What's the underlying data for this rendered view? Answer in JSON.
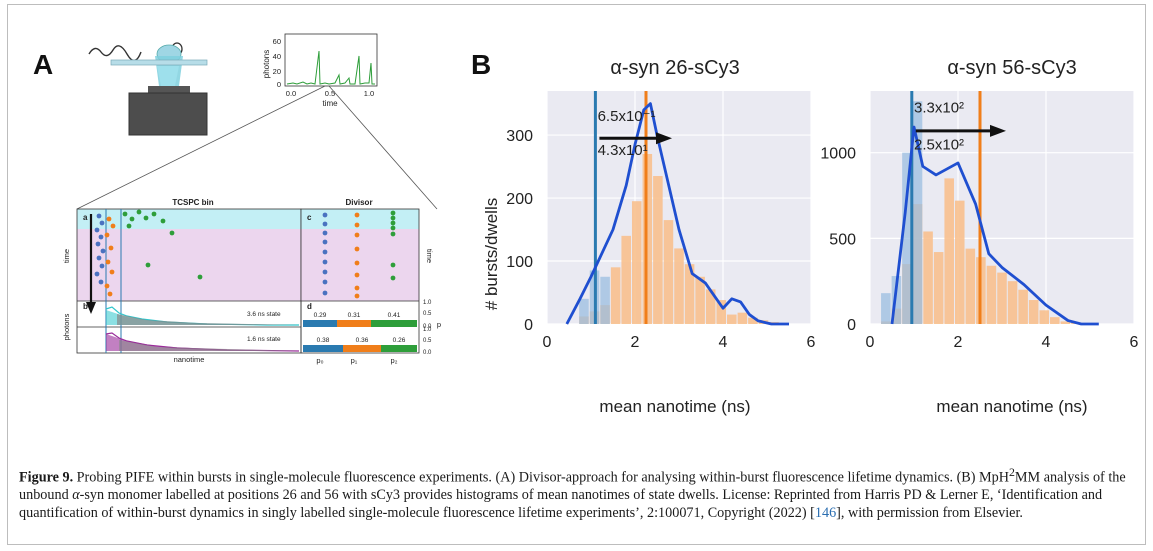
{
  "panel_labels": {
    "a": "A",
    "b": "B"
  },
  "colors": {
    "blue": "#2a7ab0",
    "orange": "#f07e1a",
    "fit_line": "#1f4fd0",
    "bar_blue": "#9bbde0",
    "bar_orange": "#f8c08e",
    "plot_bg": "#eaeaf2",
    "green": "#2e9e3a",
    "cyan": "#bff0f4",
    "violet": "#ead4ec"
  },
  "panel_a": {
    "trace": {
      "ylabel": "photons",
      "xlabel": "time",
      "yticks": [
        "0",
        "20",
        "40",
        "60"
      ],
      "xticks": [
        "0.0",
        "0.5",
        "1.0"
      ]
    },
    "tcspc": {
      "title": "TCSPC bin",
      "sub_a": "a",
      "sub_b": "b",
      "ylabel_time": "time",
      "ylabel_photons": "photons",
      "state1": "3.6 ns state",
      "state2": "1.6 ns state",
      "xlabel": "nanotime"
    },
    "divisor": {
      "title": "Divisor",
      "sub_c": "c",
      "sub_d": "d",
      "ylabel_time": "time",
      "ylabel_p": "p",
      "axis_ticks": [
        "1.0",
        "0.5",
        "0.0",
        "1.0",
        "0.5",
        "0.0"
      ],
      "row1": [
        "0.29",
        "0.31",
        "0.41"
      ],
      "row2": [
        "0.38",
        "0.36",
        "0.26"
      ],
      "xlabels": [
        "p₀",
        "p₁",
        "p₂"
      ]
    }
  },
  "chart_data": [
    {
      "type": "bar",
      "title": "α-syn 26-sCy3",
      "xlabel": "mean nanotime (ns)",
      "ylabel": "# bursts/dwells",
      "xlim": [
        0,
        6
      ],
      "ylim": [
        0,
        370
      ],
      "xticks": [
        "0",
        "2",
        "4",
        "6"
      ],
      "yticks": [
        "0",
        "100",
        "200",
        "300"
      ],
      "grid": true,
      "bin_width": 0.24,
      "blue_bars": {
        "x": [
          0.72,
          0.96,
          1.2
        ],
        "values": [
          40,
          85,
          75
        ]
      },
      "orange_bars": {
        "x": [
          0.72,
          0.96,
          1.2,
          1.44,
          1.68,
          1.92,
          2.16,
          2.4,
          2.64,
          2.88,
          3.12,
          3.36,
          3.6,
          3.84,
          4.08,
          4.32,
          4.56,
          4.8,
          5.04
        ],
        "values": [
          12,
          20,
          30,
          90,
          140,
          195,
          270,
          235,
          165,
          120,
          95,
          75,
          55,
          38,
          15,
          18,
          10,
          6,
          3
        ]
      },
      "fit_line": {
        "x": [
          0.45,
          0.75,
          1.0,
          1.2,
          1.5,
          1.8,
          2.0,
          2.2,
          2.35,
          2.5,
          2.7,
          3.0,
          3.3,
          3.6,
          3.8,
          4.0,
          4.2,
          4.4,
          4.6,
          4.8,
          5.1,
          5.5
        ],
        "y": [
          0,
          40,
          75,
          105,
          150,
          220,
          285,
          340,
          350,
          300,
          240,
          150,
          80,
          65,
          45,
          25,
          40,
          35,
          15,
          5,
          0,
          0
        ]
      },
      "vlines": [
        {
          "x": 1.1,
          "color": "blue"
        },
        {
          "x": 2.25,
          "color": "orange"
        }
      ],
      "annotations": [
        {
          "text": "6.5x10⁻¹",
          "x": 1.15,
          "y": 322
        },
        {
          "text": "4.3x10¹",
          "x": 1.15,
          "y": 268
        }
      ]
    },
    {
      "type": "bar",
      "title": "α-syn 56-sCy3",
      "xlabel": "mean nanotime (ns)",
      "ylabel": "",
      "xlim": [
        0,
        6
      ],
      "ylim": [
        0,
        1360
      ],
      "xticks": [
        "0",
        "2",
        "4",
        "6"
      ],
      "yticks": [
        "0",
        "500",
        "1000"
      ],
      "grid": true,
      "bin_width": 0.24,
      "blue_bars": {
        "x": [
          0.24,
          0.48,
          0.72,
          0.96
        ],
        "values": [
          180,
          280,
          1000,
          1300
        ]
      },
      "orange_bars": {
        "x": [
          0.24,
          0.48,
          0.72,
          0.96,
          1.2,
          1.44,
          1.68,
          1.92,
          2.16,
          2.4,
          2.64,
          2.88,
          3.12,
          3.36,
          3.6,
          3.84,
          4.08,
          4.32,
          4.56
        ],
        "values": [
          15,
          90,
          350,
          700,
          540,
          420,
          850,
          720,
          440,
          390,
          340,
          300,
          250,
          200,
          140,
          80,
          40,
          15,
          8
        ]
      },
      "fit_line": {
        "x": [
          0.5,
          0.8,
          1.0,
          1.2,
          1.5,
          2.0,
          2.4,
          2.7,
          3.0,
          3.5,
          4.0,
          4.5,
          4.8,
          5.2
        ],
        "y": [
          0,
          650,
          1150,
          920,
          870,
          940,
          700,
          410,
          330,
          230,
          110,
          20,
          0,
          0
        ]
      },
      "vlines": [
        {
          "x": 0.95,
          "color": "blue"
        },
        {
          "x": 2.5,
          "color": "orange"
        }
      ],
      "annotations": [
        {
          "text": "3.3x10²",
          "x": 1.0,
          "y": 1235
        },
        {
          "text": "2.5x10²",
          "x": 1.0,
          "y": 1020
        }
      ]
    }
  ],
  "caption": {
    "label": "Figure 9.",
    "text_1": " Probing PIFE within bursts in single-molecule fluorescence experiments. (A) Divisor-approach for analysing within-burst fluorescence lifetime dynamics. (B) MpH",
    "sup": "2",
    "text_2": "MM analysis of the unbound ",
    "alpha": "α",
    "text_3": "-syn monomer labelled at positions 26 and 56 with sCy3 provides histograms of mean nanotimes of state dwells. License: Reprinted from Harris PD & Lerner E, ‘Identification and quantification of within-burst dynamics in singly labelled single-molecule fluorescence lifetime experiments’, 2:100071, Copyright (2022) [",
    "ref": "146",
    "text_4": "], with permission from Elsevier."
  }
}
